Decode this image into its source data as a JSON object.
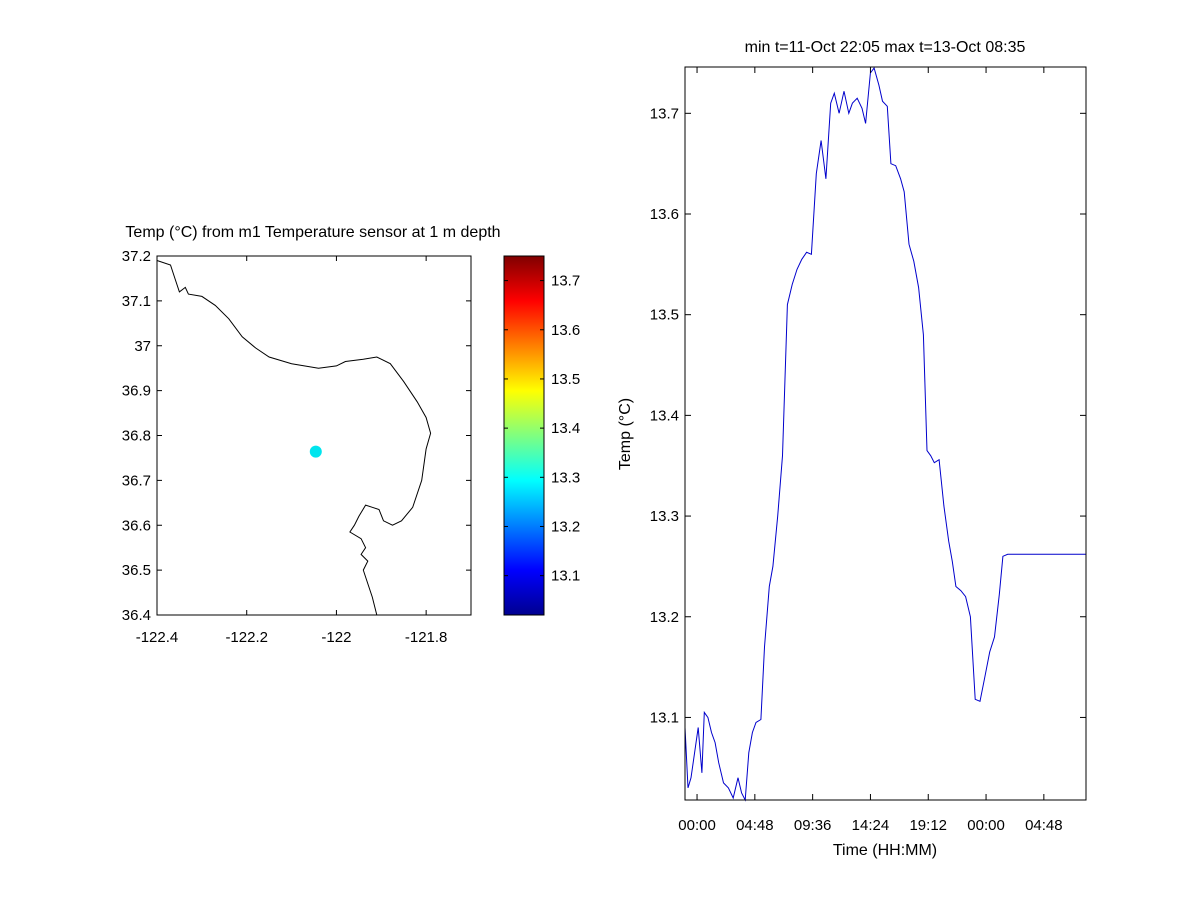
{
  "chart_data": [
    {
      "type": "scatter",
      "title": "Temp (°C) from m1 Temperature sensor at 1 m depth",
      "xlim": [
        -122.4,
        -121.7
      ],
      "ylim": [
        36.4,
        37.2
      ],
      "x_ticks": [
        -122.4,
        -122.2,
        -122,
        -121.8
      ],
      "x_tick_labels": [
        "-122.4",
        "-122.2",
        "-122",
        "-121.8"
      ],
      "y_ticks": [
        36.4,
        36.5,
        36.6,
        36.7,
        36.8,
        36.9,
        37,
        37.1,
        37.2
      ],
      "y_tick_labels": [
        "36.4",
        "36.5",
        "36.6",
        "36.7",
        "36.8",
        "36.9",
        "37",
        "37.1",
        "37.2"
      ],
      "points": [
        {
          "x": -122.046,
          "y": 36.764,
          "value": 13.3,
          "color": "#00e5ee"
        }
      ],
      "coastline": [
        [
          -122.4,
          37.19
        ],
        [
          -122.37,
          37.18
        ],
        [
          -122.36,
          37.15
        ],
        [
          -122.35,
          37.12
        ],
        [
          -122.337,
          37.13
        ],
        [
          -122.33,
          37.115
        ],
        [
          -122.3,
          37.11
        ],
        [
          -122.27,
          37.09
        ],
        [
          -122.24,
          37.06
        ],
        [
          -122.21,
          37.02
        ],
        [
          -122.18,
          36.995
        ],
        [
          -122.15,
          36.975
        ],
        [
          -122.1,
          36.96
        ],
        [
          -122.04,
          36.95
        ],
        [
          -122.0,
          36.955
        ],
        [
          -121.98,
          36.965
        ],
        [
          -121.94,
          36.97
        ],
        [
          -121.91,
          36.975
        ],
        [
          -121.88,
          36.96
        ],
        [
          -121.85,
          36.92
        ],
        [
          -121.82,
          36.875
        ],
        [
          -121.8,
          36.84
        ],
        [
          -121.79,
          36.805
        ],
        [
          -121.8,
          36.77
        ],
        [
          -121.81,
          36.7
        ],
        [
          -121.83,
          36.64
        ],
        [
          -121.855,
          36.61
        ],
        [
          -121.875,
          36.6
        ],
        [
          -121.895,
          36.61
        ],
        [
          -121.905,
          36.635
        ],
        [
          -121.92,
          36.64
        ],
        [
          -121.935,
          36.645
        ],
        [
          -121.95,
          36.62
        ],
        [
          -121.96,
          36.6
        ],
        [
          -121.97,
          36.585
        ],
        [
          -121.945,
          36.57
        ],
        [
          -121.935,
          36.55
        ],
        [
          -121.945,
          36.535
        ],
        [
          -121.93,
          36.52
        ],
        [
          -121.94,
          36.5
        ],
        [
          -121.93,
          36.47
        ],
        [
          -121.92,
          36.44
        ],
        [
          -121.91,
          36.4
        ]
      ]
    },
    {
      "type": "colorbar",
      "colormap": "jet",
      "range": [
        13.02,
        13.75
      ],
      "ticks": [
        13.1,
        13.2,
        13.3,
        13.4,
        13.5,
        13.6,
        13.7
      ],
      "tick_labels": [
        "13.1",
        "13.2",
        "13.3",
        "13.4",
        "13.5",
        "13.6",
        "13.7"
      ]
    },
    {
      "type": "line",
      "title": "min t=11-Oct 22:05 max t=13-Oct 08:35",
      "xlabel": "Time (HH:MM)",
      "ylabel": "Temp (°C)",
      "x_unit": "hours",
      "xlim": [
        -1.0,
        32.3
      ],
      "ylim": [
        13.018,
        13.746
      ],
      "x_ticks": [
        0,
        4.8,
        9.6,
        14.4,
        19.2,
        24.0,
        28.8
      ],
      "x_tick_labels": [
        "00:00",
        "04:48",
        "09:36",
        "14:24",
        "19:12",
        "00:00",
        "04:48"
      ],
      "y_ticks": [
        13.1,
        13.2,
        13.3,
        13.4,
        13.5,
        13.6,
        13.7
      ],
      "y_tick_labels": [
        "13.1",
        "13.2",
        "13.3",
        "13.4",
        "13.5",
        "13.6",
        "13.7"
      ],
      "line_color": "#0000cc",
      "series": [
        {
          "x": [
            -1.0,
            -0.75,
            -0.5,
            -0.2,
            0.1,
            0.4,
            0.6,
            0.9,
            1.2,
            1.5,
            1.8,
            2.2,
            2.6,
            3.0,
            3.4,
            3.7,
            4.0,
            4.3,
            4.6,
            4.9,
            5.3,
            5.6,
            6.0,
            6.3,
            6.7,
            7.1,
            7.5,
            7.9,
            8.3,
            8.7,
            9.1,
            9.5,
            9.9,
            10.3,
            10.7,
            11.1,
            11.4,
            11.8,
            12.2,
            12.6,
            12.9,
            13.3,
            13.7,
            14.0,
            14.4,
            14.7,
            15.1,
            15.4,
            15.8,
            16.1,
            16.5,
            16.9,
            17.2,
            17.6,
            18.0,
            18.4,
            18.8,
            19.1,
            19.4,
            19.7,
            20.1,
            20.5,
            20.9,
            21.2,
            21.5,
            21.9,
            22.3,
            22.7,
            23.1,
            23.5,
            23.9,
            24.3,
            24.7,
            25.1,
            25.4,
            25.8,
            26.2,
            26.6,
            27.0,
            27.4,
            27.8,
            28.2,
            28.6,
            29.0,
            29.4,
            29.8,
            30.2,
            30.6,
            31.0,
            31.4,
            31.8,
            32.2,
            32.3
          ],
          "y": [
            13.09,
            13.03,
            13.04,
            13.065,
            13.09,
            13.045,
            13.105,
            13.1,
            13.085,
            13.075,
            13.055,
            13.035,
            13.03,
            13.02,
            13.04,
            13.025,
            13.015,
            13.065,
            13.085,
            13.095,
            13.098,
            13.17,
            13.23,
            13.25,
            13.3,
            13.36,
            13.51,
            13.53,
            13.545,
            13.555,
            13.562,
            13.56,
            13.64,
            13.673,
            13.635,
            13.71,
            13.72,
            13.7,
            13.722,
            13.7,
            13.71,
            13.715,
            13.705,
            13.69,
            13.74,
            13.745,
            13.728,
            13.712,
            13.707,
            13.65,
            13.648,
            13.635,
            13.622,
            13.57,
            13.553,
            13.527,
            13.48,
            13.365,
            13.36,
            13.353,
            13.356,
            13.31,
            13.275,
            13.255,
            13.23,
            13.226,
            13.22,
            13.2,
            13.118,
            13.116,
            13.14,
            13.165,
            13.18,
            13.222,
            13.26,
            13.262,
            13.262,
            13.262,
            13.262,
            13.262,
            13.262,
            13.262,
            13.262,
            13.262,
            13.262,
            13.262,
            13.262,
            13.262,
            13.262,
            13.262,
            13.262,
            13.262,
            13.262
          ]
        }
      ]
    }
  ]
}
